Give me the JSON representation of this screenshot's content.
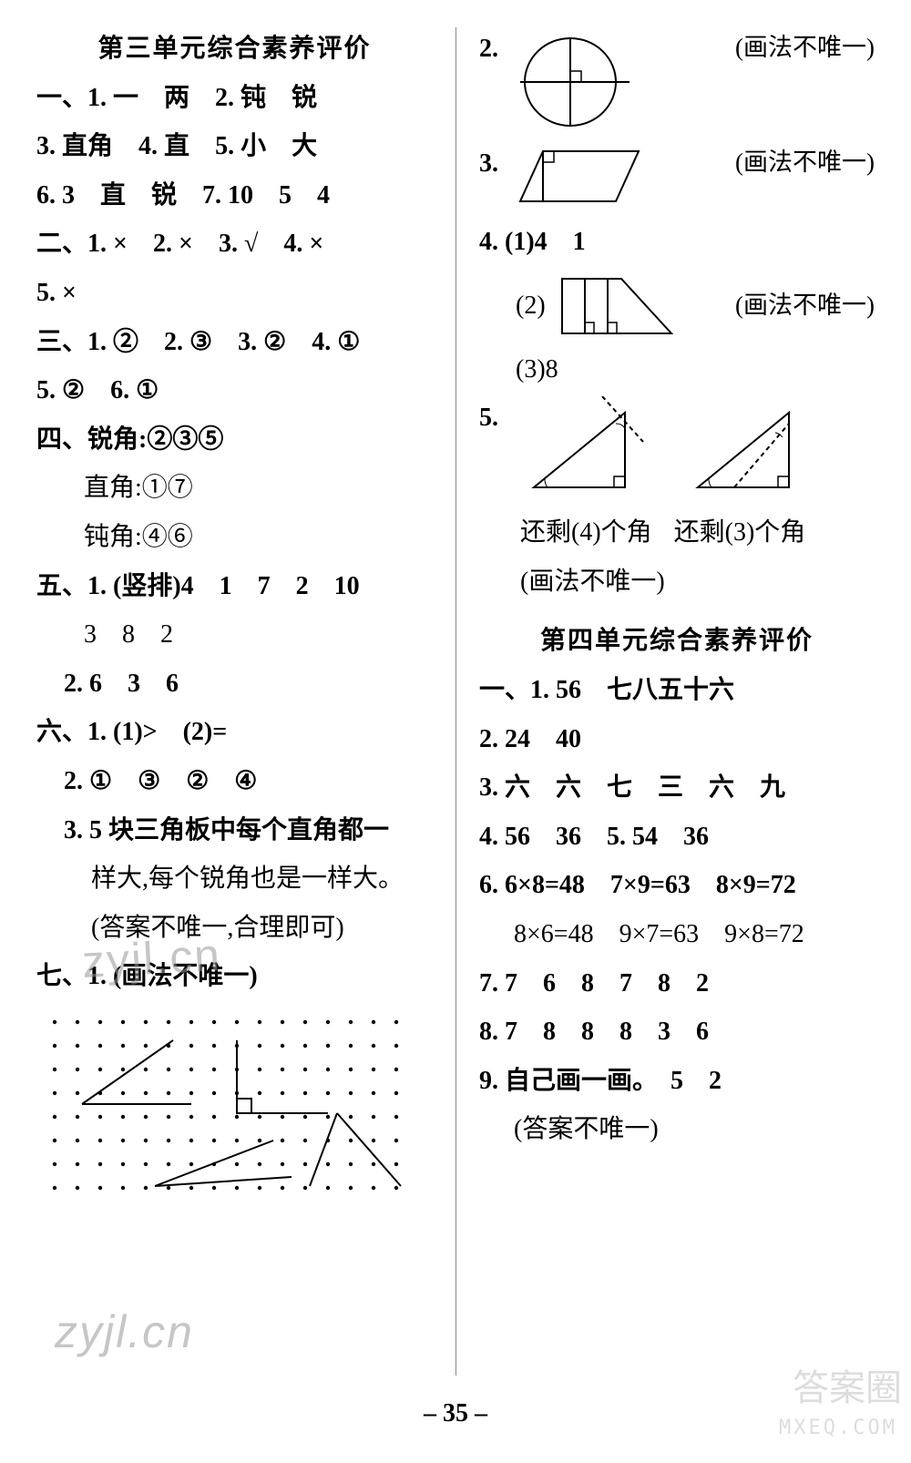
{
  "unit3": {
    "title": "第三单元综合素养评价",
    "s1": {
      "q1": "一、1. 一　两",
      "q2": "2. 钝　锐",
      "q3": "3. 直角",
      "q4": "4. 直",
      "q5": "5. 小　大",
      "q6": "6. 3　直　锐",
      "q7": "7. 10　5　4"
    },
    "s2": {
      "q1": "二、1. ×",
      "q2": "2. ×",
      "q3": "3. √",
      "q4": "4. ×",
      "q5": "5. ×"
    },
    "s3": {
      "q1": "三、1. ②",
      "q2": "2. ③",
      "q3": "3. ②",
      "q4": "4. ①",
      "q5": "5. ②",
      "q6": "6. ①"
    },
    "s4": {
      "head": "四、锐角:②③⑤",
      "l2": "直角:①⑦",
      "l3": "钝角:④⑥"
    },
    "s5": {
      "q1a": "五、1. (竖排)4　1　7　2　10",
      "q1b": "3　8　2",
      "q2": "2. 6　3　6"
    },
    "s6": {
      "q1": "六、1. (1)>　(2)=",
      "q2": "2. ①　③　②　④",
      "q3a": "3. 5 块三角板中每个直角都一",
      "q3b": "样大,每个锐角也是一样大。",
      "q3c": "(答案不唯一,合理即可)"
    },
    "s7": {
      "q1": "七、1. (画法不唯一)",
      "q2": {
        "note": "(画法不唯一)"
      },
      "q3": {
        "note": "(画法不唯一)"
      },
      "q4": {
        "p1": "4. (1)4　1",
        "p2": "(2)",
        "p2note": "(画法不唯一)",
        "p3": "(3)8"
      },
      "q5": {
        "lab": "5.",
        "l1a": "还剩(4)个角",
        "l1b": "还剩(3)个角",
        "l2": "(画法不唯一)"
      }
    }
  },
  "unit4": {
    "title": "第四单元综合素养评价",
    "s1": {
      "q1": "一、1. 56　七八五十六",
      "q2": "2. 24　40",
      "q3": "3. 六　六　七　三　六　九",
      "q4": "4. 56　36",
      "q5": "5. 54　36",
      "q6a": "6. 6×8=48　7×9=63　8×9=72",
      "q6b": "8×6=48　9×7=63　9×8=72",
      "q7": "7. 7　6　8　7　8　2",
      "q8": "8. 7　8　8　8　3　6",
      "q9": "9. 自己画一画。　5　2",
      "q9b": "(答案不唯一)"
    }
  },
  "pagenum": "– 35 –",
  "watermarks": {
    "w1": "zyjl.cn",
    "w2": "zyjl.cn"
  },
  "brand": {
    "circle": "答案圈",
    "url": "MXEQ.COM"
  }
}
